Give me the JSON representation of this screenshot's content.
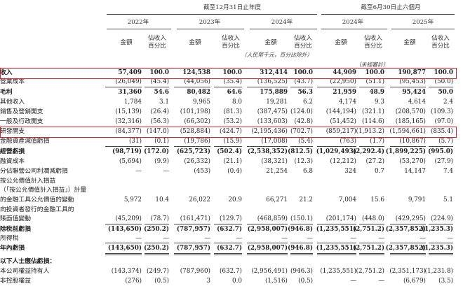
{
  "header": {
    "group_year": "截至12月31日止年度",
    "group_half": "截至6月30日止六個月",
    "years": [
      "2022年",
      "2023年",
      "2024年",
      "2024年",
      "2025年"
    ],
    "col_amount": "金額",
    "col_pct": "佔收入\n百分比",
    "unit_note": "（人民幣千元，百分比除外）",
    "unaudited_note": "（未經審計）"
  },
  "rows": [
    {
      "label": "收入",
      "style": "bold",
      "values": [
        "57,409",
        "100.0",
        "124,538",
        "100.0",
        "312,414",
        "100.0",
        "44,909",
        "100.0",
        "190,877",
        "100.0"
      ]
    },
    {
      "label": "營業成本",
      "style": "",
      "values": [
        "(26,049)",
        "(45.4)",
        "(44,056)",
        "(35.4)",
        "(136,525)",
        "(43.7)",
        "(22,950)",
        "(51.1)",
        "(95,453)",
        "(50.0)"
      ]
    },
    {
      "label": "毛利",
      "style": "bold",
      "values": [
        "31,360",
        "54.6",
        "80,482",
        "64.6",
        "175,889",
        "56.3",
        "21,959",
        "48.9",
        "95,424",
        "50.0"
      ]
    },
    {
      "label": "其他收入",
      "style": "",
      "values": [
        "1,784",
        "3.1",
        "9,965",
        "8.0",
        "19,281",
        "6.2",
        "4,174",
        "9.3",
        "4,614",
        "2.4"
      ]
    },
    {
      "label": "銷售及營銷開支",
      "style": "",
      "values": [
        "(15,139)",
        "(26.4)",
        "(101,198)",
        "(81.3)",
        "(387,475)",
        "(124.0)",
        "(144,194)",
        "(321.1)",
        "(208,570)",
        "(109.3)"
      ]
    },
    {
      "label": "一般及行政開支",
      "style": "",
      "values": [
        "(32,316)",
        "(56.3)",
        "(66,302)",
        "(53.2)",
        "(133,603)",
        "(42.8)",
        "(51,452)",
        "(114.6)",
        "(185,165)",
        "(97.0)"
      ]
    },
    {
      "label": "研發開支",
      "style": "",
      "values": [
        "(84,377)",
        "(147.0)",
        "(528,884)",
        "(424.7)",
        "(2,195,436)",
        "(702.7)",
        "(859,217)",
        "(1,913.2)",
        "(1,594,661)",
        "(835.4)"
      ]
    },
    {
      "label": "金融資產減值虧損",
      "style": "",
      "values": [
        "(31)",
        "(0.1)",
        "(19,786)",
        "(15.9)",
        "(17,008)",
        "(5.4)",
        "(763)",
        "(1.7)",
        "(10,867)",
        "(5.7)"
      ]
    },
    {
      "label": "經營虧損",
      "style": "bold",
      "values": [
        "(98,719)",
        "(172.0)",
        "(625,723)",
        "(502.4)",
        "(2,538,352)",
        "(812.5)",
        "(1,029,493)",
        "(2,292.4)",
        "(1,899,225)",
        "(995.0)"
      ]
    },
    {
      "label": "融資成本",
      "style": "",
      "values": [
        "(5,694)",
        "(9.9)",
        "(26,332)",
        "(21.1)",
        "(38,321)",
        "(12.3)",
        "(12,212)",
        "(27.2)",
        "(53,270)",
        "(27.9)"
      ]
    },
    {
      "label": "分佔聯營公司利潤減虧損",
      "style": "",
      "values": [
        "—",
        "—",
        "(453)",
        "(0.4)",
        "21,254",
        "6.8",
        "324",
        "0.7",
        "14,147",
        "7.4"
      ]
    },
    {
      "label": "按公允價值計入損益",
      "style": "",
      "values": [
        "",
        "",
        "",
        "",
        "",
        "",
        "",
        "",
        "",
        ""
      ]
    },
    {
      "label": "（「按公允價值計入損益」）計量",
      "style": "",
      "values": [
        "",
        "",
        "",
        "",
        "",
        "",
        "",
        "",
        "",
        ""
      ]
    },
    {
      "label": "的金融工具公允價值的變動",
      "style": "",
      "values": [
        "5,972",
        "10.4",
        "26,022",
        "20.9",
        "66,271",
        "21.2",
        "7,004",
        "15.6",
        "9,791",
        "5.1"
      ]
    },
    {
      "label": "向投資者發行的金融工具的",
      "style": "",
      "values": [
        "",
        "",
        "",
        "",
        "",
        "",
        "",
        "",
        "",
        ""
      ]
    },
    {
      "label": "賬面值變動",
      "style": "",
      "values": [
        "(45,209)",
        "(78.7)",
        "(161,471)",
        "(129.7)",
        "(468,859)",
        "(150.1)",
        "(201,174)",
        "(448.0)",
        "(429,295)",
        "(224.9)"
      ]
    },
    {
      "label": "除稅前虧損",
      "style": "bold",
      "values": [
        "(143,650)",
        "(250.2)",
        "(787,957)",
        "(632.7)",
        "(2,958,007)",
        "(946.8)",
        "(1,235,551)",
        "(2,751.2)",
        "(2,357,852)",
        "(1,235.3)"
      ]
    },
    {
      "label": "所得稅",
      "style": "",
      "values": [
        "—",
        "—",
        "—",
        "—",
        "—",
        "—",
        "—",
        "—",
        "—",
        "—"
      ]
    },
    {
      "label": "年內虧損",
      "style": "bold",
      "values": [
        "(143,650)",
        "(250.2)",
        "(787,957)",
        "(632.7)",
        "(2,958,007)",
        "(946.8)",
        "(1,235,551)",
        "(2,751.2)",
        "(2,357,852)",
        "(1,235.3)"
      ]
    },
    {
      "label": "以下人士應佔虧損：",
      "style": "section",
      "values": [
        "",
        "",
        "",
        "",
        "",
        "",
        "",
        "",
        "",
        ""
      ]
    },
    {
      "label": "本公司權益持有人",
      "style": "",
      "values": [
        "(143,374)",
        "(249.7)",
        "(787,960)",
        "(632.7)",
        "(2,956,491)",
        "(946.3)",
        "(1,235,551)",
        "(2,751.2)",
        "(2,351,173)",
        "(1,231.8)"
      ]
    },
    {
      "label": "非控股權益",
      "style": "",
      "values": [
        "(276)",
        "(0.5)",
        "3",
        "0.0",
        "(1,516)",
        "(0.5)",
        "—",
        "—",
        "(6,679)",
        "(3.5)"
      ]
    }
  ],
  "highlight": {
    "color": "#d2232a",
    "rows": [
      0,
      6
    ]
  }
}
